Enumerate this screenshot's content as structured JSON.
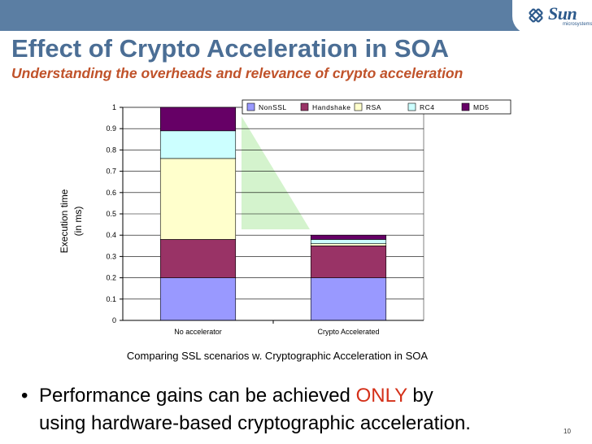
{
  "header": {
    "logo_text": "Sun",
    "logo_sub": "microsystems",
    "title": "Effect of Crypto Acceleration in SOA",
    "subtitle": "Understanding the overheads and relevance of crypto acceleration"
  },
  "colors": {
    "header_bar": "#5b7ea3",
    "title": "#4b6e95",
    "subtitle": "#c0522a",
    "highlight": "#d43019"
  },
  "chart_data": {
    "type": "bar",
    "stacked": true,
    "categories": [
      "No accelerator",
      "Crypto Accelerated"
    ],
    "series": [
      {
        "name": "NonSSL",
        "color": "#9999ff",
        "values": [
          0.2,
          0.2
        ]
      },
      {
        "name": "Handshake",
        "color": "#993366",
        "values": [
          0.18,
          0.15
        ]
      },
      {
        "name": "RSA",
        "color": "#ffffcc",
        "values": [
          0.38,
          0.01
        ]
      },
      {
        "name": "RC4",
        "color": "#ccffff",
        "values": [
          0.13,
          0.02
        ]
      },
      {
        "name": "MD5",
        "color": "#660066",
        "values": [
          0.11,
          0.02
        ]
      }
    ],
    "ylabel_line1": "Execution time",
    "ylabel_line2": "(in ms)",
    "xlabel": "Comparing SSL scenarios w. Cryptographic Acceleration in SOA",
    "ylim": [
      0,
      1
    ],
    "yticks": [
      "0",
      "0.1",
      "0.2",
      "0.3",
      "0.4",
      "0.5",
      "0.6",
      "0.7",
      "0.8",
      "0.9",
      "1"
    ],
    "grid": true,
    "legend": "top"
  },
  "bullet": {
    "line1_before": "Performance gains can be achieved ",
    "line1_highlight": "ONLY",
    "line1_after": " by",
    "line2": "using hardware-based cryptographic acceleration."
  },
  "page_number": "10"
}
